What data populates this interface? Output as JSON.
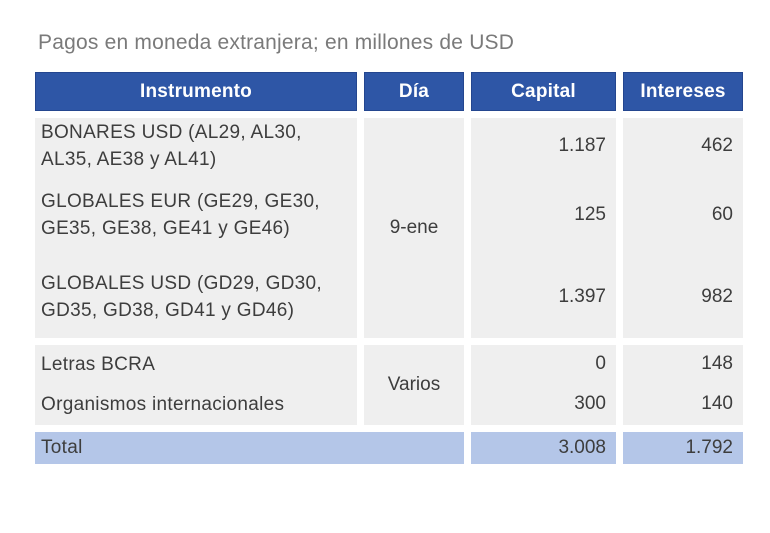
{
  "title": "Pagos en moneda extranjera; en millones de USD",
  "table": {
    "headers": [
      "Instrumento",
      "Día",
      "Capital",
      "Intereses"
    ],
    "groups": [
      {
        "day": "9-ene",
        "rows": [
          {
            "instrument": "BONARES USD (AL29, AL30, AL35, AE38 y AL41)",
            "capital": "1.187",
            "interest": "462"
          },
          {
            "instrument": "GLOBALES EUR (GE29, GE30, GE35, GE38, GE41 y GE46)",
            "capital": "125",
            "interest": "60"
          },
          {
            "instrument": "GLOBALES USD (GD29, GD30, GD35, GD38, GD41 y GD46)",
            "capital": "1.397",
            "interest": "982"
          }
        ]
      },
      {
        "day": "Varios",
        "rows": [
          {
            "instrument": "Letras BCRA",
            "capital": "0",
            "interest": "148"
          },
          {
            "instrument": "Organismos internacionales",
            "capital": "300",
            "interest": "140"
          }
        ]
      }
    ],
    "total": {
      "label": "Total",
      "capital": "3.008",
      "interest": "1.792"
    }
  },
  "colors": {
    "header_bg": "#2e56a6",
    "header_text": "#ffffff",
    "cell_bg": "#efefef",
    "total_bg": "#b4c6e8",
    "body_text": "#3d3d3d",
    "title_text": "#7a7a7a"
  },
  "chart_data": {
    "type": "table",
    "title": "Pagos en moneda extranjera; en millones de USD",
    "columns": [
      "Instrumento",
      "Día",
      "Capital",
      "Intereses"
    ],
    "rows": [
      [
        "BONARES USD (AL29, AL30, AL35, AE38 y AL41)",
        "9-ene",
        1187,
        462
      ],
      [
        "GLOBALES EUR (GE29, GE30, GE35, GE38, GE41 y GE46)",
        "9-ene",
        125,
        60
      ],
      [
        "GLOBALES USD (GD29, GD30, GD35, GD38, GD41 y GD46)",
        "9-ene",
        1397,
        982
      ],
      [
        "Letras BCRA",
        "Varios",
        0,
        148
      ],
      [
        "Organismos internacionales",
        "Varios",
        300,
        140
      ]
    ],
    "total_row": [
      "Total",
      "",
      3008,
      1792
    ],
    "units": "millones de USD"
  }
}
